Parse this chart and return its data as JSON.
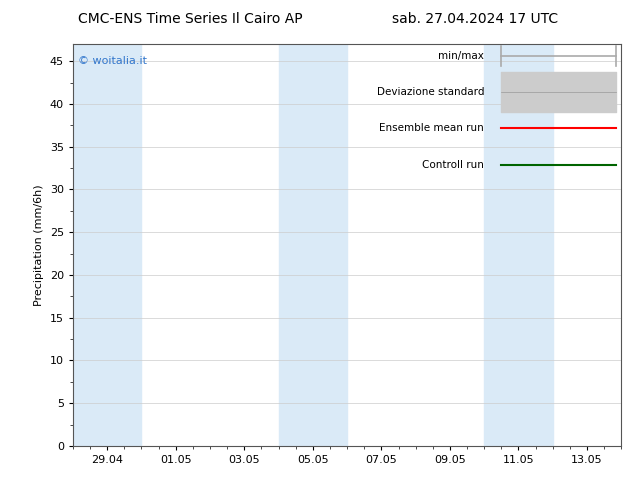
{
  "title_left": "CMC-ENS Time Series Il Cairo AP",
  "title_right": "sab. 27.04.2024 17 UTC",
  "ylabel": "Precipitation (mm/6h)",
  "ylim": [
    0,
    47
  ],
  "yticks": [
    0,
    5,
    10,
    15,
    20,
    25,
    30,
    35,
    40,
    45
  ],
  "xtick_labels": [
    "29.04",
    "01.05",
    "03.05",
    "05.05",
    "07.05",
    "09.05",
    "11.05",
    "13.05"
  ],
  "xtick_positions": [
    2,
    6,
    10,
    14,
    18,
    22,
    26,
    30
  ],
  "xmin": 0,
  "xmax": 32,
  "watermark": "© woitalia.it",
  "bg_color": "#ffffff",
  "band_color": "#daeaf7",
  "band_ranges": [
    [
      0,
      4
    ],
    [
      12,
      16
    ],
    [
      24,
      28
    ]
  ],
  "legend_labels": [
    "min/max",
    "Deviazione standard",
    "Ensemble mean run",
    "Controll run"
  ],
  "legend_line_colors": [
    "#aaaaaa",
    "#bbbbbb",
    "#ff0000",
    "#006400"
  ],
  "title_fontsize": 10,
  "label_fontsize": 8,
  "tick_fontsize": 8,
  "legend_fontsize": 7.5
}
